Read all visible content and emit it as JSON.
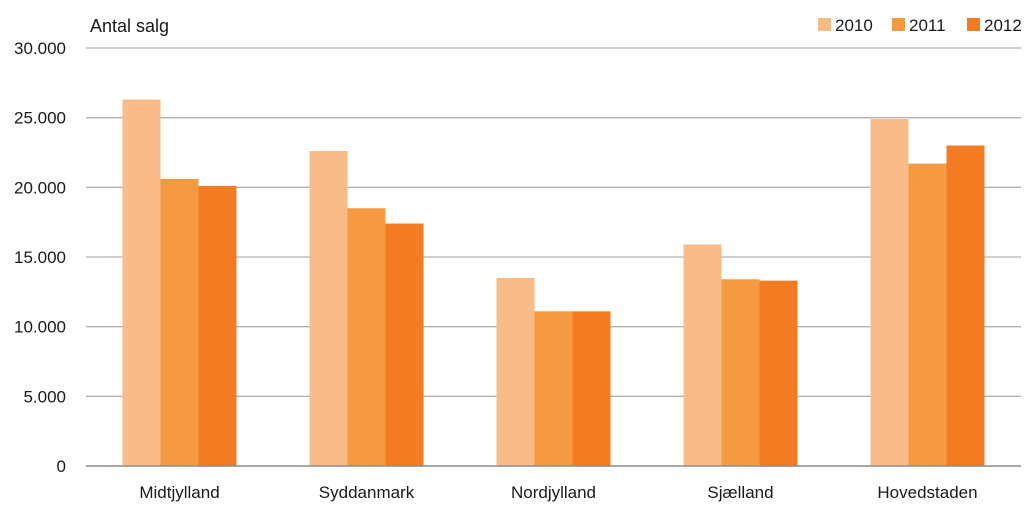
{
  "chart_data": {
    "type": "bar",
    "ylabel": "Antal salg",
    "categories": [
      "Midtjylland",
      "Syddanmark",
      "Nordjylland",
      "Sjælland",
      "Hovedstaden"
    ],
    "series": [
      {
        "name": "2010",
        "color": "#f9bb87",
        "values": [
          26300,
          22600,
          13500,
          15900,
          24900
        ]
      },
      {
        "name": "2011",
        "color": "#f69a42",
        "values": [
          20600,
          18500,
          11100,
          13400,
          21700
        ]
      },
      {
        "name": "2012",
        "color": "#f37b21",
        "values": [
          20100,
          17400,
          11100,
          13300,
          23000
        ]
      }
    ],
    "ylim": [
      0,
      30000
    ],
    "yticks": [
      0,
      5000,
      10000,
      15000,
      20000,
      25000,
      30000
    ],
    "ytick_labels": [
      "0",
      "5.000",
      "10.000",
      "15.000",
      "20.000",
      "25.000",
      "30.000"
    ],
    "grid": true,
    "legend_position": "top-right"
  }
}
